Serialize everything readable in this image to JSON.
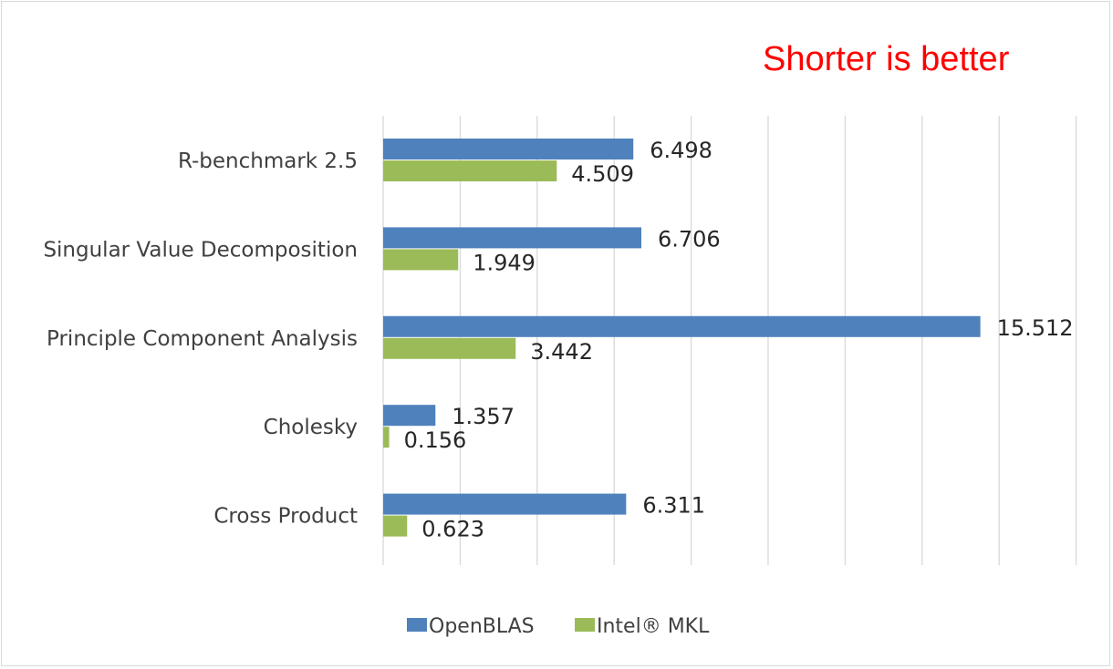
{
  "annotation": "Shorter is better",
  "colors": {
    "openblas": "#4f81bd",
    "mkl": "#9bbb59",
    "annotation": "#ff0000",
    "grid": "#d9d9d9"
  },
  "chart_data": {
    "type": "bar",
    "orientation": "horizontal",
    "categories": [
      "R-benchmark 2.5",
      "Singular Value Decomposition",
      "Principle Component Analysis",
      "Cholesky",
      "Cross Product"
    ],
    "series": [
      {
        "name": "OpenBLAS",
        "values": [
          6.498,
          6.706,
          15.512,
          1.357,
          6.311
        ]
      },
      {
        "name": "Intel® MKL",
        "values": [
          4.509,
          1.949,
          3.442,
          0.156,
          0.623
        ]
      }
    ],
    "xlim": [
      0,
      18
    ],
    "grid": true,
    "axis_tick_labels_shown": false,
    "legend_position": "bottom"
  }
}
